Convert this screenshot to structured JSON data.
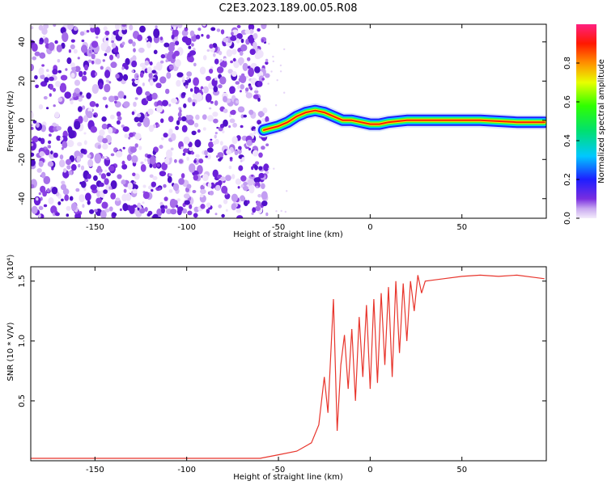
{
  "title": "C2E3.2023.189.00.05.R08",
  "chart_data": [
    {
      "type": "heatmap",
      "xlabel": "Height of straight line (km)",
      "ylabel": "Frequency (Hz)",
      "xlim": [
        -185,
        96
      ],
      "ylim": [
        -50,
        49
      ],
      "xticks": [
        -150,
        -100,
        -50,
        0,
        50
      ],
      "yticks": [
        -40,
        -20,
        0,
        20,
        40
      ],
      "noise_region_x": [
        -185,
        -56
      ],
      "signal_trace": {
        "x": [
          -58,
          -50,
          -45,
          -40,
          -35,
          -30,
          -25,
          -20,
          -15,
          -10,
          -5,
          0,
          5,
          10,
          20,
          40,
          60,
          80,
          95
        ],
        "y": [
          -5,
          -3,
          -1,
          2,
          4,
          5,
          4,
          2,
          0,
          0,
          -1,
          -2,
          -2,
          -1,
          0,
          0,
          0,
          -1,
          -1
        ]
      },
      "colorbar": {
        "label": "Normalized spectral amplitude",
        "range": [
          0,
          1
        ],
        "ticks": [
          0.0,
          0.2,
          0.4,
          0.6,
          0.8
        ],
        "tick_labels": [
          "0.0",
          "0.2",
          "0.4",
          "0.6",
          "0.8"
        ],
        "colormap": "rainbow"
      }
    },
    {
      "type": "line",
      "xlabel": "Height of straight line (km)",
      "ylabel": "SNR (10 * V/V)",
      "scale_label": "(x10⁴)",
      "xlim": [
        -185,
        96
      ],
      "ylim": [
        0,
        1.62
      ],
      "xticks": [
        -150,
        -100,
        -50,
        0,
        50
      ],
      "yticks": [
        0.5,
        1.0,
        1.5
      ],
      "ytick_labels": [
        "0.5",
        "1.0",
        "1.5"
      ],
      "series": [
        {
          "color": "#e8352c",
          "x": [
            -185,
            -100,
            -60,
            -50,
            -40,
            -32,
            -28,
            -25,
            -23,
            -20,
            -18,
            -16,
            -14,
            -12,
            -10,
            -8,
            -6,
            -4,
            -2,
            0,
            2,
            4,
            6,
            8,
            10,
            12,
            14,
            16,
            18,
            20,
            22,
            24,
            26,
            28,
            30,
            40,
            50,
            60,
            70,
            80,
            90,
            95
          ],
          "y": [
            0.02,
            0.02,
            0.02,
            0.05,
            0.08,
            0.15,
            0.3,
            0.7,
            0.4,
            1.35,
            0.25,
            0.8,
            1.05,
            0.6,
            1.1,
            0.5,
            1.2,
            0.7,
            1.3,
            0.6,
            1.35,
            0.65,
            1.4,
            0.8,
            1.45,
            0.7,
            1.5,
            0.9,
            1.48,
            1.0,
            1.5,
            1.25,
            1.55,
            1.4,
            1.5,
            1.52,
            1.54,
            1.55,
            1.54,
            1.55,
            1.53,
            1.52
          ]
        }
      ]
    }
  ]
}
